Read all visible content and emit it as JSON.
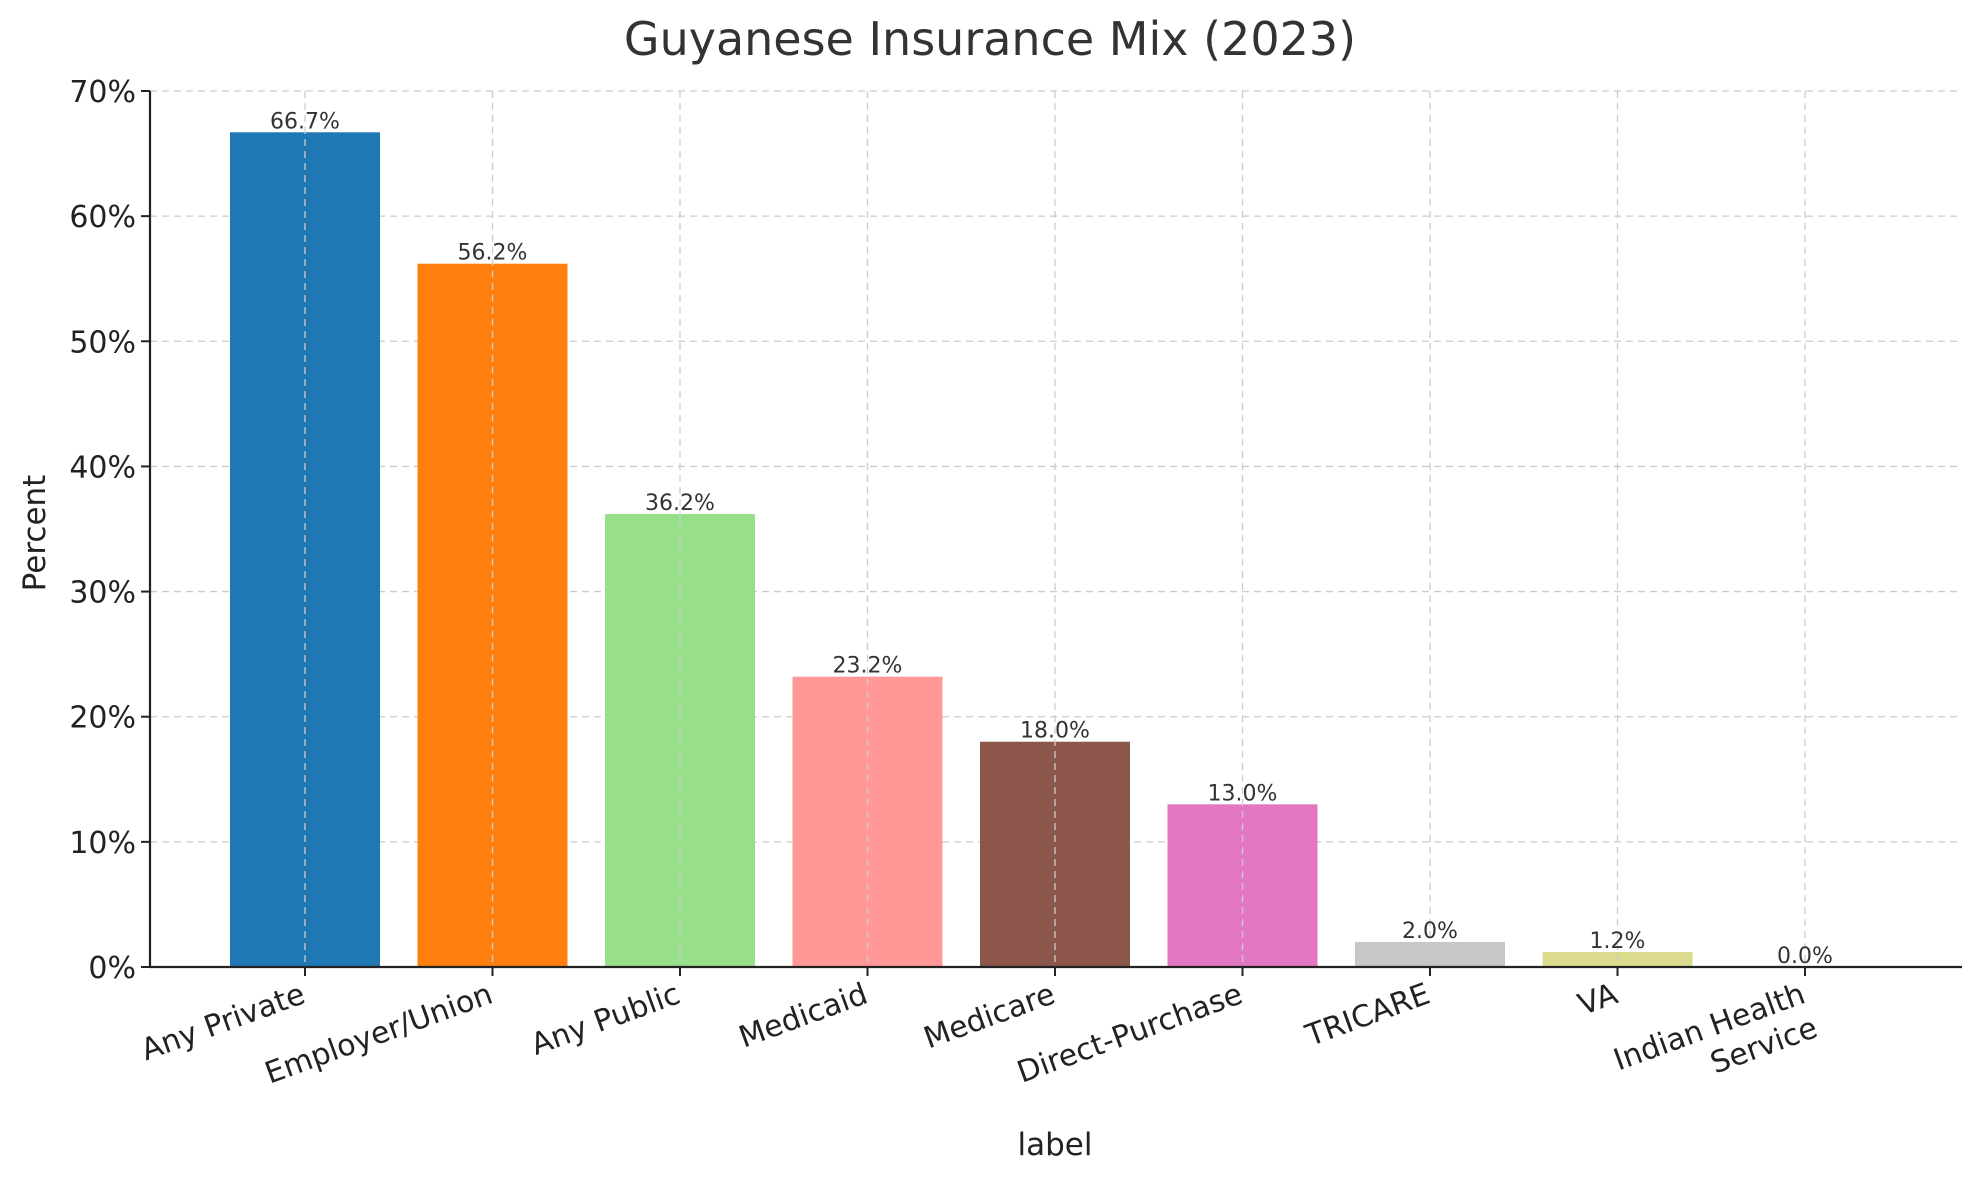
{
  "chart_data": {
    "type": "bar",
    "title": "Guyanese Insurance Mix (2023)",
    "xlabel": "label",
    "ylabel": "Percent",
    "ylim": [
      0,
      70
    ],
    "yticks": [
      0,
      10,
      20,
      30,
      40,
      50,
      60,
      70
    ],
    "ytick_suffix": "%",
    "grid": true,
    "categories": [
      [
        "Any Private"
      ],
      [
        "Employer/Union"
      ],
      [
        "Any Public"
      ],
      [
        "Medicaid"
      ],
      [
        "Medicare"
      ],
      [
        "Direct-Purchase"
      ],
      [
        "TRICARE"
      ],
      [
        "VA"
      ],
      [
        "Indian Health",
        "Service"
      ]
    ],
    "values": [
      66.7,
      56.2,
      36.2,
      23.2,
      18.0,
      13.0,
      2.0,
      1.2,
      0.0
    ],
    "data_labels": [
      "66.7%",
      "56.2%",
      "36.2%",
      "23.2%",
      "18.0%",
      "13.0%",
      "2.0%",
      "1.2%",
      "0.0%"
    ],
    "colors": [
      "#1f77b4",
      "#ff7f0e",
      "#98df8a",
      "#ff9896",
      "#8c564b",
      "#e377c2",
      "#c7c7c7",
      "#dbdb8d",
      "#9edae5"
    ]
  }
}
